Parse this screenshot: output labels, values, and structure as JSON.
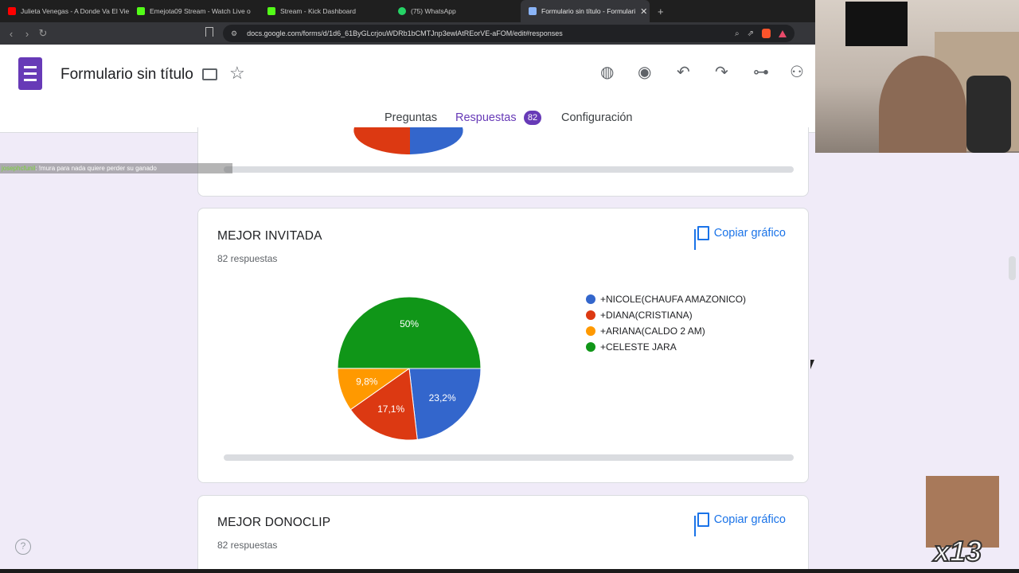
{
  "browser": {
    "tabs": [
      {
        "label": "Julieta Venegas - A Donde Va El Vie",
        "icon_color": "#ff0000"
      },
      {
        "label": "Emejota09 Stream - Watch Live o",
        "icon_color": "#53fc18"
      },
      {
        "label": "Stream - Kick Dashboard",
        "icon_color": "#53fc18"
      },
      {
        "label": "(75) WhatsApp",
        "icon_color": "#25d366"
      },
      {
        "label": "Formulario sin título - Formulari",
        "icon_color": "#8ab4f8"
      }
    ],
    "new_tab": "+",
    "url": "docs.google.com/forms/d/1d6_61ByGLcrjouWDRb1bCMTJnp3ewlAtREorVE-aFOM/edit#responses"
  },
  "header": {
    "title": "Formulario sin título",
    "tabs": {
      "questions": "Preguntas",
      "responses": "Respuestas",
      "settings": "Configuración"
    },
    "responses_count": "82"
  },
  "chat": {
    "user": "josephcfunil",
    "message": ": !mura para nada quiere perder su ganado"
  },
  "cards": {
    "main": {
      "title": "MEJOR INVITADA",
      "subtitle": "82 respuestas",
      "copy_label": "Copiar gráfico"
    },
    "bottom": {
      "title": "MEJOR DONOCLIP",
      "subtitle": "82 respuestas",
      "copy_label": "Copiar gráfico"
    }
  },
  "chart_data": {
    "type": "pie",
    "series": [
      {
        "name": "+NICOLE(CHAUFA AMAZONICO)",
        "value": 23.2,
        "label": "23,2%",
        "color": "#3366cc"
      },
      {
        "name": "+DIANA(CRISTIANA)",
        "value": 17.1,
        "label": "17,1%",
        "color": "#dc3912"
      },
      {
        "name": "+ARIANA(CALDO 2 AM)",
        "value": 9.8,
        "label": "9,8%",
        "color": "#ff9900"
      },
      {
        "name": "+CELESTE JARA",
        "value": 50,
        "label": "50%",
        "color": "#109618"
      }
    ],
    "legend": "right"
  },
  "emote": {
    "count": "x13"
  },
  "help": "?"
}
